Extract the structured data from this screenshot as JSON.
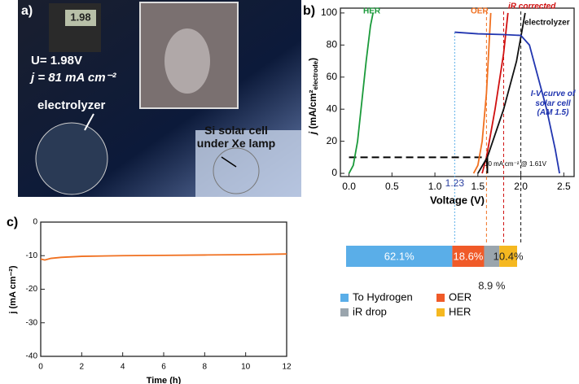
{
  "photo_panel": {
    "panel_label": "a)",
    "meter_reading": "1.98",
    "voltage": "U= 1.98V",
    "current": "j = 81 mA cm⁻²",
    "electrolyzer_label": "electrolyzer",
    "cell_label": "Si solar cell under Xe lamp"
  },
  "chart_data": [
    {
      "type": "line",
      "panel_label": "b)",
      "x_label": "Voltage (V)",
      "y_label": {
        "symbol": "j",
        "unit": " (mA/cm²",
        "sub": "electrode",
        "end": ")"
      },
      "xlim": [
        -0.1,
        2.62
      ],
      "ylim": [
        -2,
        103
      ],
      "xticks": [
        {
          "value": 0,
          "label": "0.0"
        },
        0.5,
        {
          "value": 1,
          "label": "1.0"
        },
        1.5,
        {
          "value": 2,
          "label": "2.0"
        },
        2.5
      ],
      "yticks": [
        0,
        20,
        40,
        60,
        80,
        100
      ],
      "series": [
        {
          "name": "HER",
          "color": "#1a9a3a",
          "x": [
            0,
            0.05,
            0.1,
            0.15,
            0.2,
            0.25,
            0.28
          ],
          "values": [
            0,
            5,
            20,
            45,
            70,
            92,
            100
          ]
        },
        {
          "name": "OER",
          "color": "#f07020",
          "x": [
            1.45,
            1.5,
            1.55,
            1.6,
            1.63,
            1.65
          ],
          "values": [
            0,
            5,
            20,
            50,
            80,
            100
          ]
        },
        {
          "name": "iR corrected",
          "color": "#d01010",
          "x": [
            1.55,
            1.6,
            1.7,
            1.8,
            1.85
          ],
          "values": [
            0,
            10,
            40,
            75,
            100
          ]
        },
        {
          "name": "electrolyzer",
          "color": "#111111",
          "x": [
            1.5,
            1.61,
            1.8,
            1.95,
            2.05
          ],
          "values": [
            0,
            10,
            40,
            70,
            100
          ]
        },
        {
          "name": "I-V curve of solar cell (AM 1.5)",
          "color": "#2236b0",
          "x": [
            1.23,
            1.5,
            1.8,
            2.0,
            2.1,
            2.2,
            2.3,
            2.4,
            2.45
          ],
          "values": [
            88,
            87,
            86.5,
            86,
            80,
            60,
            40,
            15,
            0
          ]
        }
      ],
      "reference_lines": [
        {
          "x": 1.23,
          "color": "#5aaee8"
        },
        {
          "x": 1.6,
          "color": "#f07020"
        },
        {
          "x": 1.8,
          "color": "#d01010"
        },
        {
          "x": 2.0,
          "color": "#111111"
        }
      ],
      "operating_current": 10,
      "operating_voltage": 1.61,
      "annotations": [
        "1.23",
        "10 mA cm⁻² @ 1.61V"
      ]
    },
    {
      "type": "stacked_bar",
      "xlim": [
        0,
        100
      ],
      "series": [
        {
          "name": "To Hydrogen",
          "color": "#5aaee8",
          "values": [
            62.1
          ],
          "value_labels": [
            "62.1%"
          ]
        },
        {
          "name": "OER",
          "color": "#f05a28",
          "values": [
            18.6
          ],
          "value_labels": [
            "18.6%"
          ]
        },
        {
          "name": "iR drop",
          "color": "#9aa5ad",
          "values": [
            8.9
          ],
          "value_labels": [
            "8.9 %"
          ]
        },
        {
          "name": "HER",
          "color": "#f5b820",
          "values": [
            10.4
          ],
          "value_labels": [
            "10.4%"
          ]
        }
      ]
    },
    {
      "type": "line",
      "panel_label": "c)",
      "x_label": "Time (h)",
      "y_label": "j (mA cm⁻²)",
      "xlim": [
        0,
        12
      ],
      "ylim": [
        -40,
        0
      ],
      "xticks": [
        0,
        2,
        4,
        6,
        8,
        10,
        12
      ],
      "yticks": [
        -40,
        -30,
        -20,
        -10,
        0
      ],
      "series": [
        {
          "color": "#f07020",
          "x": [
            0,
            0.2,
            0.5,
            1,
            2,
            4,
            6,
            8,
            10,
            12
          ],
          "values": [
            -11,
            -11.3,
            -10.8,
            -10.5,
            -10.2,
            -10,
            -9.9,
            -9.8,
            -9.7,
            -9.5
          ]
        }
      ]
    }
  ]
}
